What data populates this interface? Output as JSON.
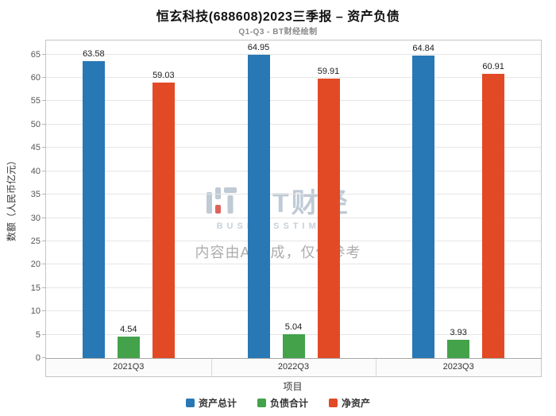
{
  "watermark": {
    "brand": "BT财经",
    "brand_sub": "BUSINESSTIMES",
    "notice": "内容由AI生成，仅供参考"
  },
  "chart_data": {
    "type": "bar",
    "title": "恒玄科技(688608)2023三季报 – 资产负债",
    "subtitle": "Q1-Q3 - BT财经绘制",
    "categories": [
      "2021Q3",
      "2022Q3",
      "2023Q3"
    ],
    "series": [
      {
        "name": "资产总计",
        "color": "#2878B5",
        "values": [
          63.58,
          64.95,
          64.84
        ]
      },
      {
        "name": "负债合计",
        "color": "#43A24A",
        "values": [
          4.54,
          5.04,
          3.93
        ]
      },
      {
        "name": "净资产",
        "color": "#E24A26",
        "values": [
          59.03,
          59.91,
          60.91
        ]
      }
    ],
    "xlabel": "项目",
    "ylabel": "数额（人民币亿元）",
    "ylim": [
      0,
      68
    ],
    "yticks": [
      0,
      5,
      10,
      15,
      20,
      25,
      30,
      35,
      40,
      45,
      50,
      55,
      60,
      65
    ],
    "grid": true,
    "legend_position": "bottom"
  }
}
